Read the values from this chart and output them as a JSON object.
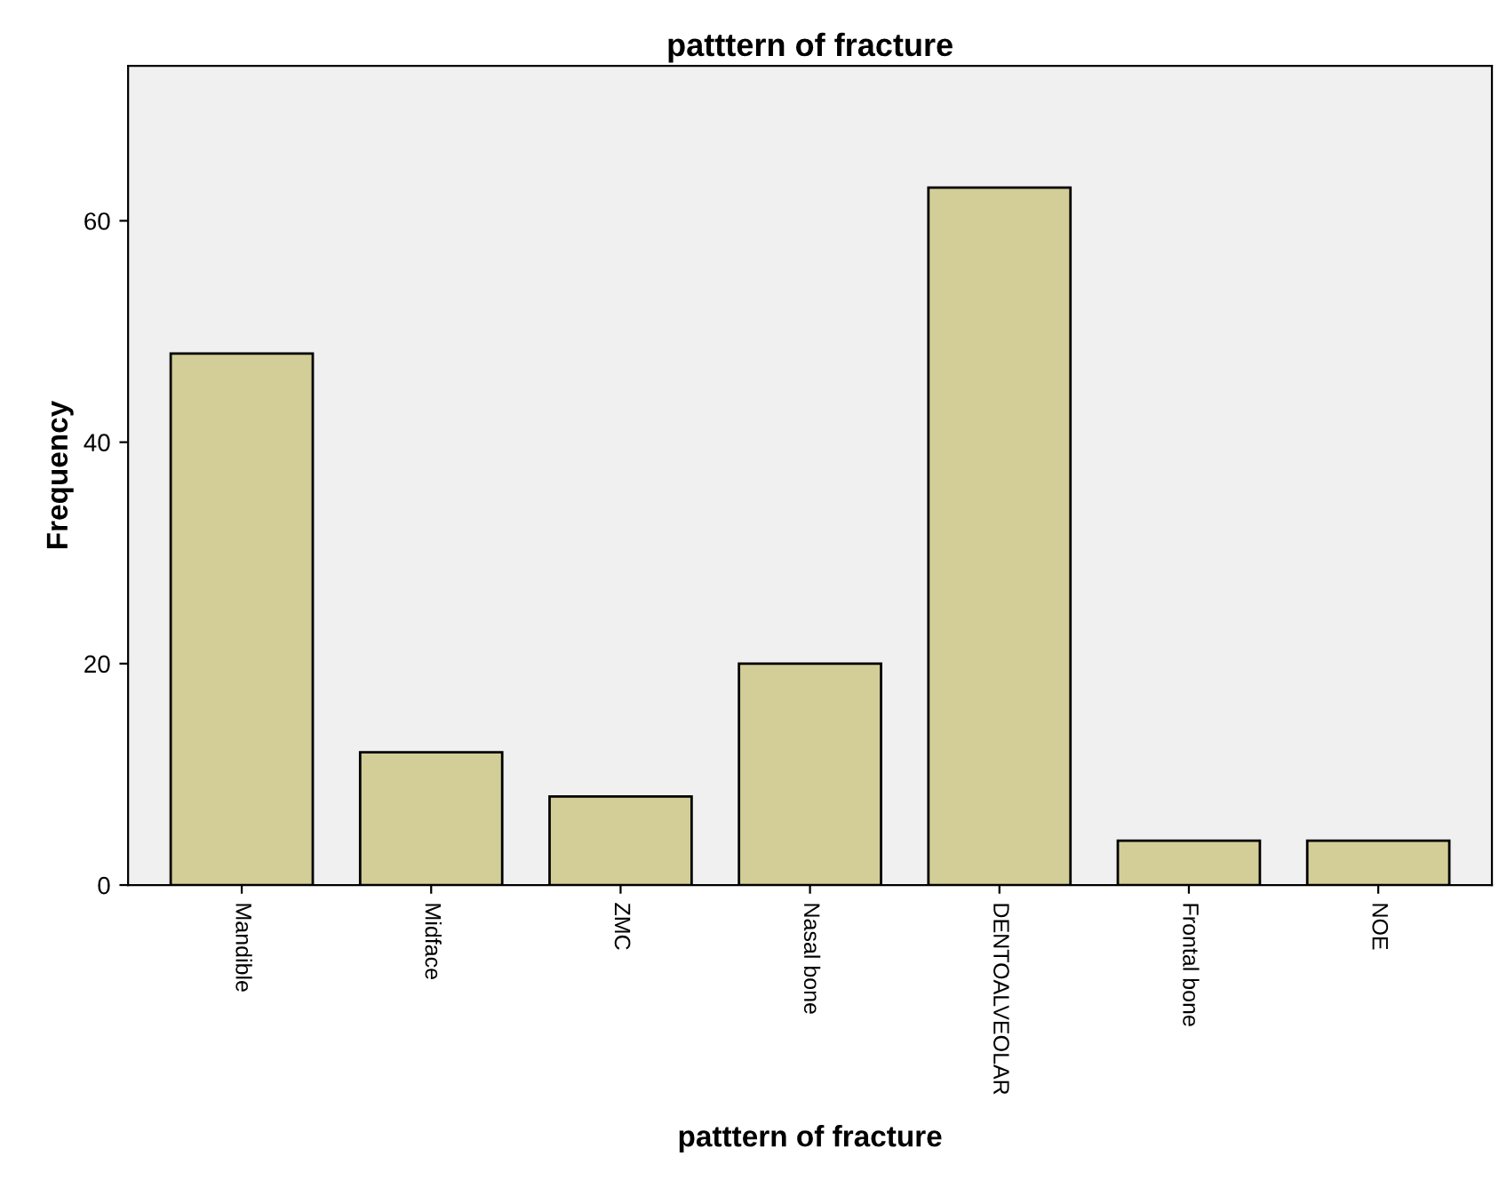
{
  "chart_data": {
    "type": "bar",
    "title": "patttern of fracture",
    "xlabel": "patttern of fracture",
    "ylabel": "Frequency",
    "categories": [
      "Mandible",
      "Midface",
      "ZMC",
      "Nasal bone",
      "DENTOALVEOLAR",
      "Frontal bone",
      "NOE"
    ],
    "values": [
      48,
      12,
      8,
      20,
      63,
      4,
      4
    ],
    "color": "#d3ce97",
    "ylim": [
      0,
      74
    ],
    "yticks": [
      0,
      20,
      40,
      60
    ],
    "grid": false,
    "legend": false
  }
}
